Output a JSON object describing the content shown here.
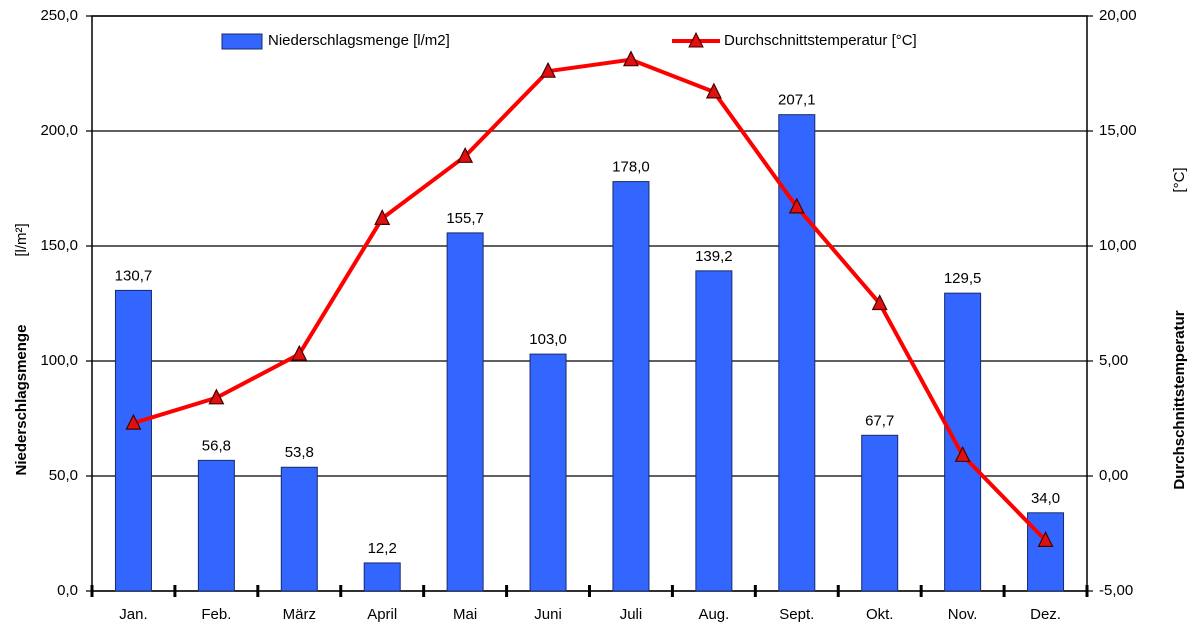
{
  "chart_data": {
    "type": "bar",
    "categories": [
      "Jan.",
      "Feb.",
      "März",
      "April",
      "Mai",
      "Juni",
      "Juli",
      "Aug.",
      "Sept.",
      "Okt.",
      "Nov.",
      "Dez."
    ],
    "series": [
      {
        "name": "Niederschlagsmenge [l/m2]",
        "type": "bar",
        "color": "#3366ff",
        "values": [
          130.7,
          56.8,
          53.8,
          12.2,
          155.7,
          103.0,
          178.0,
          139.2,
          207.1,
          67.7,
          129.5,
          34.0
        ],
        "value_labels": [
          "130,7",
          "56,8",
          "53,8",
          "12,2",
          "155,7",
          "103,0",
          "178,0",
          "139,2",
          "207,1",
          "67,7",
          "129,5",
          "34,0"
        ]
      },
      {
        "name": "Durchschnittstemperatur [°C]",
        "type": "line",
        "color": "#ff0000",
        "axis": "y2",
        "values": [
          2.3,
          3.4,
          5.3,
          11.2,
          13.9,
          17.6,
          18.1,
          16.7,
          11.7,
          7.5,
          0.9,
          -2.8
        ]
      }
    ],
    "ylabel": "Niederschlagsmenge",
    "yunit": "[l/m²]",
    "y2label": "Durchschnittstemperatur",
    "y2unit": "[°C]",
    "ylim": [
      0,
      250
    ],
    "yticks": [
      {
        "value": 0,
        "label": "0,0"
      },
      {
        "value": 50,
        "label": "50,0"
      },
      {
        "value": 100,
        "label": "100,0"
      },
      {
        "value": 150,
        "label": "150,0"
      },
      {
        "value": 200,
        "label": "200,0"
      },
      {
        "value": 250,
        "label": "250,0"
      }
    ],
    "y2lim": [
      -5,
      20
    ],
    "y2ticks": [
      {
        "value": -5,
        "label": "-5,00"
      },
      {
        "value": 0,
        "label": "0,00"
      },
      {
        "value": 5,
        "label": "5,00"
      },
      {
        "value": 10,
        "label": "10,00"
      },
      {
        "value": 15,
        "label": "15,00"
      },
      {
        "value": 20,
        "label": "20,00"
      }
    ],
    "grid": true,
    "legend": "top"
  }
}
